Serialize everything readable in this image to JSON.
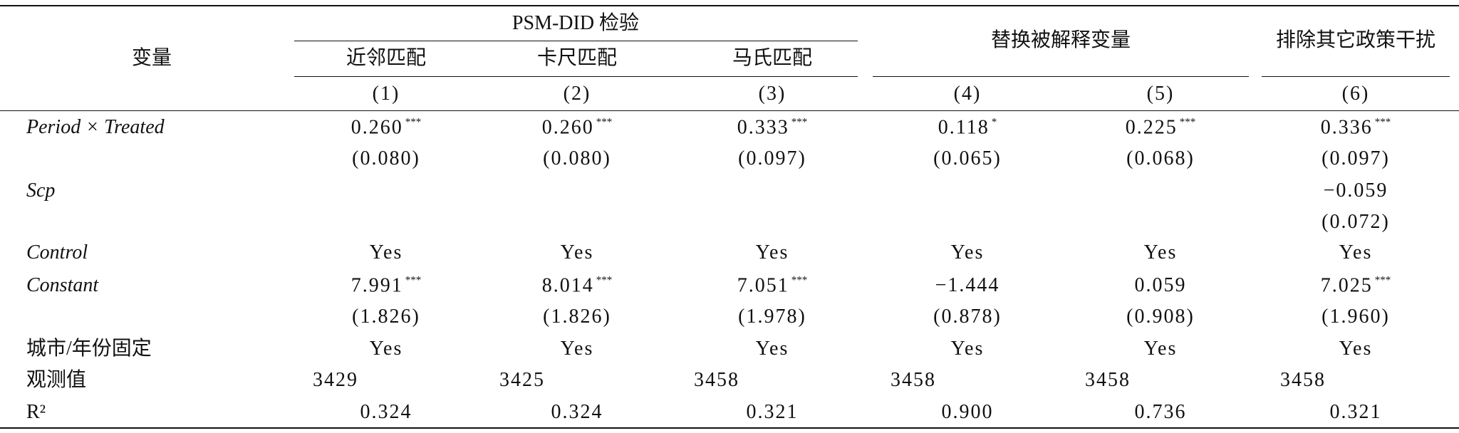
{
  "header": {
    "variable": "变量",
    "group1": "PSM-DID 检验",
    "group2": "替换被解释变量",
    "group3": "排除其它政策干扰",
    "subheaders": [
      "近邻匹配",
      "卡尺匹配",
      "马氏匹配"
    ],
    "column_numbers": [
      "(1)",
      "(2)",
      "(3)",
      "(4)",
      "(5)",
      "(6)"
    ]
  },
  "rows": [
    {
      "label": "Period × Treated",
      "cells": [
        {
          "v": "0.260",
          "s": "***"
        },
        {
          "v": "0.260",
          "s": "***"
        },
        {
          "v": "0.333",
          "s": "***"
        },
        {
          "v": "0.118",
          "s": "*"
        },
        {
          "v": "0.225",
          "s": "***"
        },
        {
          "v": "0.336",
          "s": "***"
        }
      ]
    },
    {
      "label": null,
      "cells": [
        {
          "v": "(0.080)"
        },
        {
          "v": "(0.080)"
        },
        {
          "v": "(0.097)"
        },
        {
          "v": "(0.065)"
        },
        {
          "v": "(0.068)"
        },
        {
          "v": "(0.097)"
        }
      ]
    },
    {
      "label": "Scp",
      "cells": [
        null,
        null,
        null,
        null,
        null,
        {
          "v": "−0.059"
        }
      ]
    },
    {
      "label": null,
      "cells": [
        null,
        null,
        null,
        null,
        null,
        {
          "v": "(0.072)"
        }
      ]
    },
    {
      "label": "Control",
      "cells": [
        {
          "v": "Yes"
        },
        {
          "v": "Yes"
        },
        {
          "v": "Yes"
        },
        {
          "v": "Yes"
        },
        {
          "v": "Yes"
        },
        {
          "v": "Yes"
        }
      ]
    },
    {
      "label": "Constant",
      "cells": [
        {
          "v": "7.991",
          "s": "***"
        },
        {
          "v": "8.014",
          "s": "***"
        },
        {
          "v": "7.051",
          "s": "***"
        },
        {
          "v": "−1.444"
        },
        {
          "v": "0.059"
        },
        {
          "v": "7.025",
          "s": "***"
        }
      ]
    },
    {
      "label": null,
      "cells": [
        {
          "v": "(1.826)"
        },
        {
          "v": "(1.826)"
        },
        {
          "v": "(1.978)"
        },
        {
          "v": "(0.878)"
        },
        {
          "v": "(0.908)"
        },
        {
          "v": "(1.960)"
        }
      ]
    },
    {
      "label": "城市/年份固定",
      "cells": [
        {
          "v": "Yes"
        },
        {
          "v": "Yes"
        },
        {
          "v": "Yes"
        },
        {
          "v": "Yes"
        },
        {
          "v": "Yes"
        },
        {
          "v": "Yes"
        }
      ]
    },
    {
      "label": "观测值",
      "cells": [
        {
          "v": "3429"
        },
        {
          "v": "3425"
        },
        {
          "v": "3458"
        },
        {
          "v": "3458"
        },
        {
          "v": "3458"
        },
        {
          "v": "3458"
        }
      ]
    },
    {
      "label": "R²",
      "cells": [
        {
          "v": "0.324"
        },
        {
          "v": "0.324"
        },
        {
          "v": "0.321"
        },
        {
          "v": "0.900"
        },
        {
          "v": "0.736"
        },
        {
          "v": "0.321"
        }
      ]
    }
  ]
}
